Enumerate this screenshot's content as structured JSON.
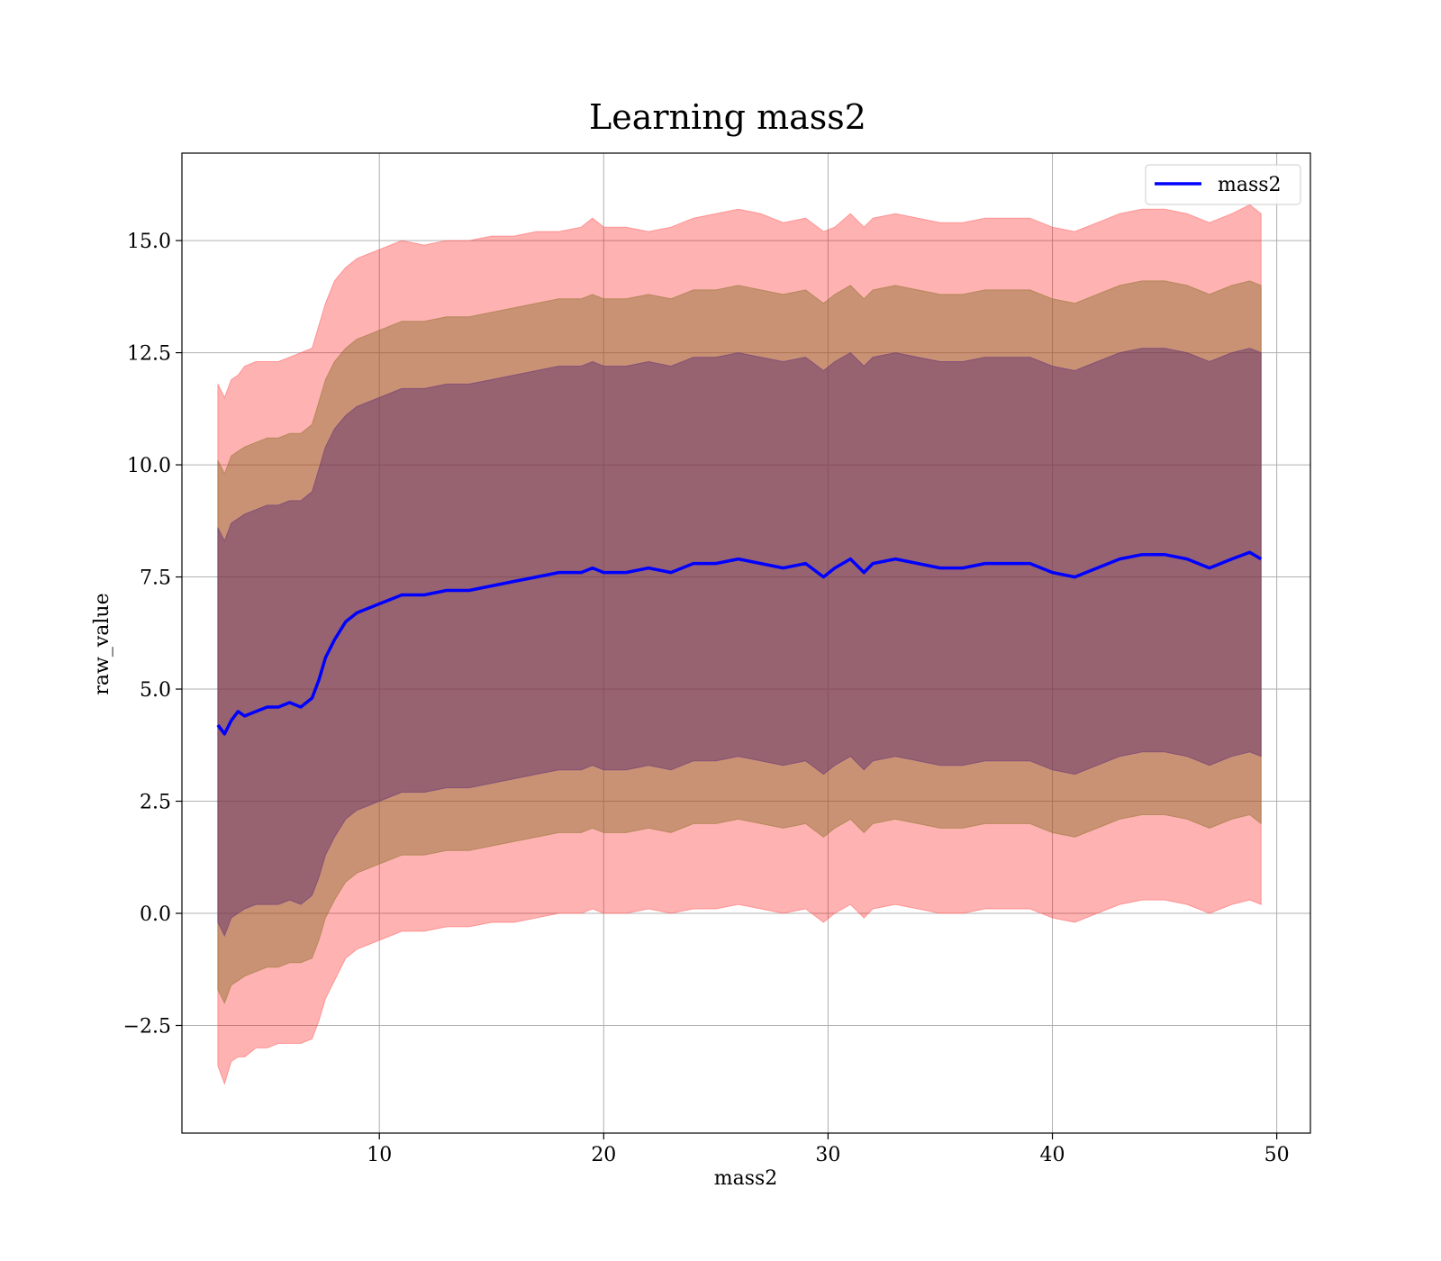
{
  "chart_data": {
    "type": "line",
    "title": "Learning mass2",
    "xlabel": "mass2",
    "ylabel": "raw_value",
    "xlim": [
      1.2,
      51.5
    ],
    "ylim": [
      -4.9,
      16.95
    ],
    "xticks": [
      10,
      20,
      30,
      40,
      50
    ],
    "xtick_labels": [
      "10",
      "20",
      "30",
      "40",
      "50"
    ],
    "yticks": [
      -2.5,
      0.0,
      2.5,
      5.0,
      7.5,
      10.0,
      12.5,
      15.0
    ],
    "ytick_labels": [
      "−2.5",
      "0.0",
      "2.5",
      "5.0",
      "7.5",
      "10.0",
      "12.5",
      "15.0"
    ],
    "grid": true,
    "legend": {
      "placement": "top-right",
      "entries": [
        "mass2"
      ]
    },
    "colors": {
      "line": "#0000ff",
      "band_outer": "#ff8080",
      "band_middle": "#b07a4a",
      "band_inner": "#7a4a70"
    },
    "x": [
      2.8,
      3.1,
      3.4,
      3.7,
      4.0,
      4.5,
      5.0,
      5.5,
      6.0,
      6.5,
      7.0,
      7.3,
      7.6,
      8.0,
      8.5,
      9.0,
      9.5,
      10.0,
      10.5,
      11.0,
      12.0,
      13.0,
      14.0,
      15.0,
      16.0,
      17.0,
      18.0,
      19.0,
      19.5,
      20.0,
      21.0,
      22.0,
      23.0,
      24.0,
      25.0,
      26.0,
      27.0,
      28.0,
      29.0,
      29.8,
      30.3,
      31.0,
      31.6,
      32.0,
      33.0,
      34.0,
      35.0,
      36.0,
      37.0,
      38.0,
      39.0,
      40.0,
      41.0,
      42.0,
      43.0,
      44.0,
      45.0,
      46.0,
      47.0,
      48.0,
      48.8,
      49.3
    ],
    "series": [
      {
        "name": "mass2",
        "values": [
          4.2,
          4.0,
          4.3,
          4.5,
          4.4,
          4.5,
          4.6,
          4.6,
          4.7,
          4.6,
          4.8,
          5.2,
          5.7,
          6.1,
          6.5,
          6.7,
          6.8,
          6.9,
          7.0,
          7.1,
          7.1,
          7.2,
          7.2,
          7.3,
          7.4,
          7.5,
          7.6,
          7.6,
          7.7,
          7.6,
          7.6,
          7.7,
          7.6,
          7.8,
          7.8,
          7.9,
          7.8,
          7.7,
          7.8,
          7.5,
          7.7,
          7.9,
          7.6,
          7.8,
          7.9,
          7.8,
          7.7,
          7.7,
          7.8,
          7.8,
          7.8,
          7.6,
          7.5,
          7.7,
          7.9,
          8.0,
          8.0,
          7.9,
          7.7,
          7.9,
          8.05,
          7.9
        ]
      }
    ],
    "bands": [
      {
        "upper": [
          11.8,
          11.5,
          11.9,
          12.0,
          12.2,
          12.3,
          12.3,
          12.3,
          12.4,
          12.5,
          12.6,
          13.1,
          13.6,
          14.1,
          14.4,
          14.6,
          14.7,
          14.8,
          14.9,
          15.0,
          14.9,
          15.0,
          15.0,
          15.1,
          15.1,
          15.2,
          15.2,
          15.3,
          15.5,
          15.3,
          15.3,
          15.2,
          15.3,
          15.5,
          15.6,
          15.7,
          15.6,
          15.4,
          15.5,
          15.2,
          15.3,
          15.6,
          15.3,
          15.5,
          15.6,
          15.5,
          15.4,
          15.4,
          15.5,
          15.5,
          15.5,
          15.3,
          15.2,
          15.4,
          15.6,
          15.7,
          15.7,
          15.6,
          15.4,
          15.6,
          15.8,
          15.6
        ],
        "lower": [
          -3.4,
          -3.8,
          -3.3,
          -3.2,
          -3.2,
          -3.0,
          -3.0,
          -2.9,
          -2.9,
          -2.9,
          -2.8,
          -2.4,
          -1.9,
          -1.5,
          -1.0,
          -0.8,
          -0.7,
          -0.6,
          -0.5,
          -0.4,
          -0.4,
          -0.3,
          -0.3,
          -0.2,
          -0.2,
          -0.1,
          0.0,
          0.0,
          0.1,
          0.0,
          0.0,
          0.1,
          0.0,
          0.1,
          0.1,
          0.2,
          0.1,
          0.0,
          0.1,
          -0.2,
          0.0,
          0.2,
          -0.1,
          0.1,
          0.2,
          0.1,
          0.0,
          0.0,
          0.1,
          0.1,
          0.1,
          -0.1,
          -0.2,
          0.0,
          0.2,
          0.3,
          0.3,
          0.2,
          0.0,
          0.2,
          0.3,
          0.2
        ]
      },
      {
        "upper": [
          10.1,
          9.8,
          10.2,
          10.3,
          10.4,
          10.5,
          10.6,
          10.6,
          10.7,
          10.7,
          10.9,
          11.4,
          11.9,
          12.3,
          12.6,
          12.8,
          12.9,
          13.0,
          13.1,
          13.2,
          13.2,
          13.3,
          13.3,
          13.4,
          13.5,
          13.6,
          13.7,
          13.7,
          13.8,
          13.7,
          13.7,
          13.8,
          13.7,
          13.9,
          13.9,
          14.0,
          13.9,
          13.8,
          13.9,
          13.6,
          13.8,
          14.0,
          13.7,
          13.9,
          14.0,
          13.9,
          13.8,
          13.8,
          13.9,
          13.9,
          13.9,
          13.7,
          13.6,
          13.8,
          14.0,
          14.1,
          14.1,
          14.0,
          13.8,
          14.0,
          14.1,
          14.0
        ],
        "lower": [
          -1.7,
          -2.0,
          -1.6,
          -1.5,
          -1.4,
          -1.3,
          -1.2,
          -1.2,
          -1.1,
          -1.1,
          -1.0,
          -0.6,
          -0.1,
          0.3,
          0.7,
          0.9,
          1.0,
          1.1,
          1.2,
          1.3,
          1.3,
          1.4,
          1.4,
          1.5,
          1.6,
          1.7,
          1.8,
          1.8,
          1.9,
          1.8,
          1.8,
          1.9,
          1.8,
          2.0,
          2.0,
          2.1,
          2.0,
          1.9,
          2.0,
          1.7,
          1.9,
          2.1,
          1.8,
          2.0,
          2.1,
          2.0,
          1.9,
          1.9,
          2.0,
          2.0,
          2.0,
          1.8,
          1.7,
          1.9,
          2.1,
          2.2,
          2.2,
          2.1,
          1.9,
          2.1,
          2.2,
          2.0
        ]
      },
      {
        "upper": [
          8.6,
          8.3,
          8.7,
          8.8,
          8.9,
          9.0,
          9.1,
          9.1,
          9.2,
          9.2,
          9.4,
          9.9,
          10.4,
          10.8,
          11.1,
          11.3,
          11.4,
          11.5,
          11.6,
          11.7,
          11.7,
          11.8,
          11.8,
          11.9,
          12.0,
          12.1,
          12.2,
          12.2,
          12.3,
          12.2,
          12.2,
          12.3,
          12.2,
          12.4,
          12.4,
          12.5,
          12.4,
          12.3,
          12.4,
          12.1,
          12.3,
          12.5,
          12.2,
          12.4,
          12.5,
          12.4,
          12.3,
          12.3,
          12.4,
          12.4,
          12.4,
          12.2,
          12.1,
          12.3,
          12.5,
          12.6,
          12.6,
          12.5,
          12.3,
          12.5,
          12.6,
          12.5
        ],
        "lower": [
          -0.2,
          -0.5,
          -0.1,
          0.0,
          0.1,
          0.2,
          0.2,
          0.2,
          0.3,
          0.2,
          0.4,
          0.8,
          1.3,
          1.7,
          2.1,
          2.3,
          2.4,
          2.5,
          2.6,
          2.7,
          2.7,
          2.8,
          2.8,
          2.9,
          3.0,
          3.1,
          3.2,
          3.2,
          3.3,
          3.2,
          3.2,
          3.3,
          3.2,
          3.4,
          3.4,
          3.5,
          3.4,
          3.3,
          3.4,
          3.1,
          3.3,
          3.5,
          3.2,
          3.4,
          3.5,
          3.4,
          3.3,
          3.3,
          3.4,
          3.4,
          3.4,
          3.2,
          3.1,
          3.3,
          3.5,
          3.6,
          3.6,
          3.5,
          3.3,
          3.5,
          3.6,
          3.5
        ]
      }
    ]
  }
}
